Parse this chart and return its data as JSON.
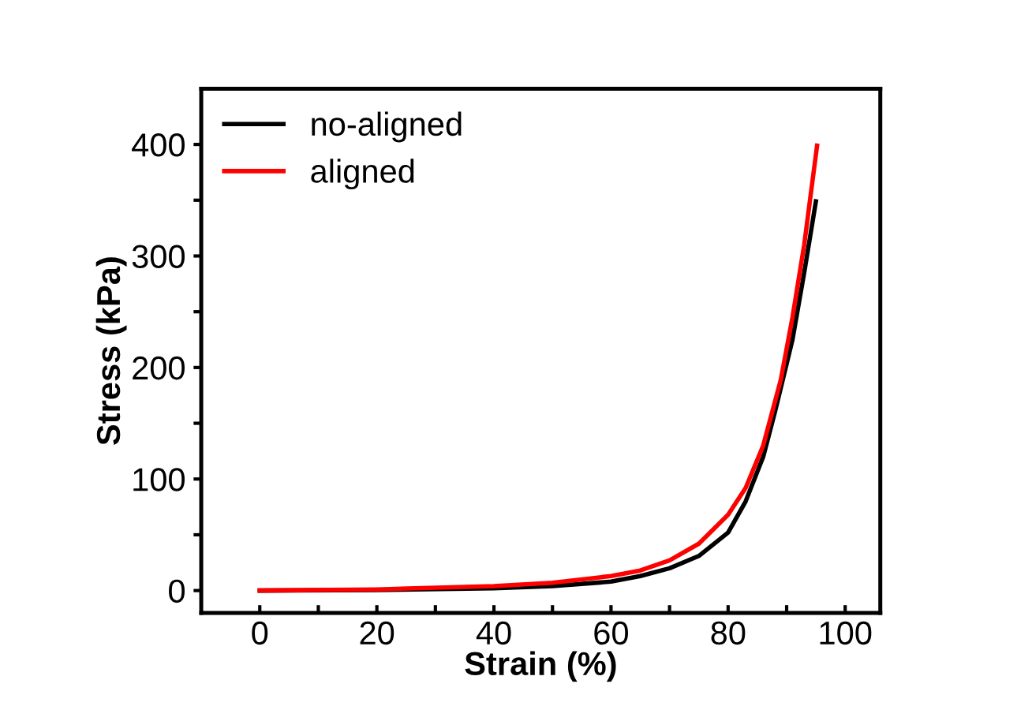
{
  "chart_data": {
    "type": "line",
    "xlabel": "Strain (%)",
    "ylabel": "Stress (kPa)",
    "xlim": [
      -10,
      106
    ],
    "ylim": [
      -20,
      450
    ],
    "xticks": [
      0,
      {
        "value": 10,
        "label": null
      },
      20,
      {
        "value": 30,
        "label": null
      },
      40,
      {
        "value": 50,
        "label": null
      },
      60,
      {
        "value": 70,
        "label": null
      },
      80,
      {
        "value": 90,
        "label": null
      },
      100
    ],
    "yticks": [
      0,
      {
        "value": 50,
        "label": null
      },
      100,
      {
        "value": 150,
        "label": null
      },
      200,
      {
        "value": 250,
        "label": null
      },
      300,
      {
        "value": 350,
        "label": null
      },
      400
    ],
    "grid": false,
    "legend": "top left",
    "line_style": "solid",
    "marker": "none",
    "series": [
      {
        "name": "no-aligned",
        "color": "#000000",
        "x": [
          0,
          20,
          40,
          50,
          60,
          65,
          70,
          75,
          80,
          83,
          86,
          88,
          91,
          93,
          95
        ],
        "values": [
          0,
          0.5,
          2,
          4,
          8,
          13,
          20,
          31,
          52,
          80,
          120,
          160,
          225,
          285,
          349
        ]
      },
      {
        "name": "aligned",
        "color": "#ff0000",
        "x": [
          0,
          20,
          40,
          50,
          60,
          65,
          70,
          75,
          80,
          83,
          86,
          89,
          91,
          93,
          95.2
        ],
        "values": [
          0,
          1,
          4,
          7,
          13,
          18,
          27,
          42,
          68,
          92,
          130,
          189,
          245,
          310,
          399
        ]
      }
    ]
  }
}
